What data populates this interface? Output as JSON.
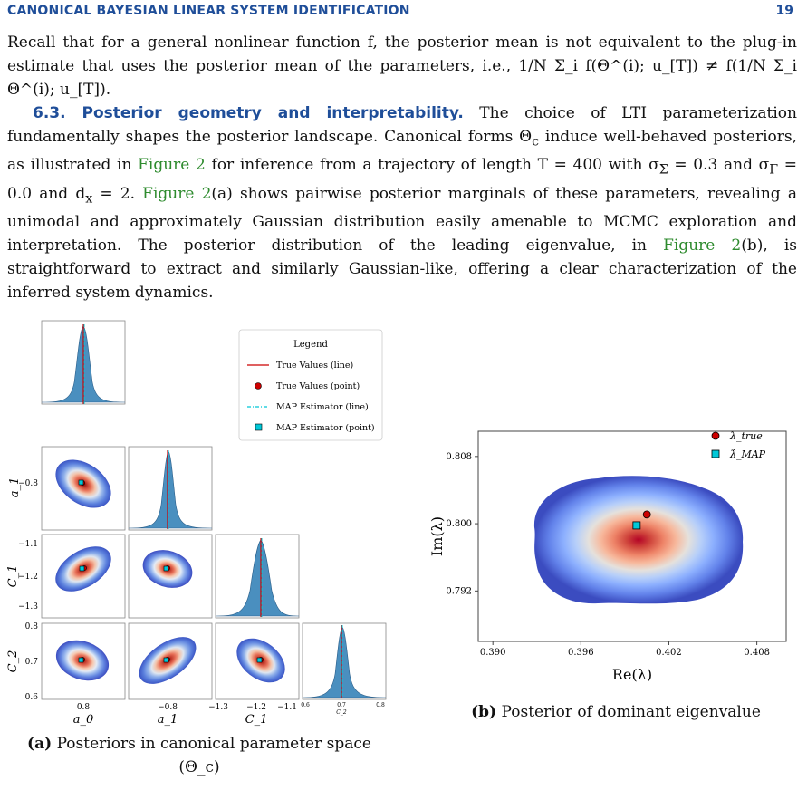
{
  "header": {
    "title": "CANONICAL BAYESIAN LINEAR SYSTEM IDENTIFICATION",
    "page_number": "19"
  },
  "paragraph1": {
    "text": "Recall that for a general nonlinear function f, the posterior mean is not equivalent to the plug-in estimate that uses the posterior mean of the parameters, i.e.,",
    "formula": "1/N Σ_i f(Θ^(i); u_[T]) ≠ f(1/N Σ_i Θ^(i); u_[T])."
  },
  "section": {
    "heading": "6.3. Posterior geometry and interpretability.",
    "s1": "The choice of LTI parameterization fundamentally shapes the posterior landscape. Canonical forms Θ",
    "s2": " induce well-behaved posteriors, as illustrated in ",
    "fig_ref": "Figure 2",
    "s3": " for inference from a trajectory of length T = 400 with σ",
    "s4": " = 0.3 and σ",
    "s5": " = 0.0 and d",
    "s6": " = 2. ",
    "s7": "(a) shows pairwise posterior marginals of these parameters, revealing a unimodal and approximately Gaussian distribution easily amenable to MCMC exploration and interpretation. The posterior distribution of the leading eigenvalue, in ",
    "s8": "(b), is straightforward to extract and similarly Gaussian-like, offering a clear characterization of the inferred system dynamics.",
    "sub_c": "c",
    "sub_sigma": "Σ",
    "sub_gamma": "Γ",
    "sub_x": "x"
  },
  "legend_a": {
    "title": "Legend",
    "items": [
      "True Values (line)",
      "True Values (point)",
      "MAP Estimator (line)",
      "MAP Estimator (point)"
    ]
  },
  "legend_b": {
    "items": [
      "λ_true",
      "λ̂_MAP"
    ]
  },
  "colors": {
    "accent": "#1f4e99",
    "link": "#2e8b2e",
    "true": "#cc0000",
    "map": "#00c8d8",
    "hist": "#4a8fbf"
  },
  "chart_data": [
    {
      "type": "scatter",
      "title": "",
      "variables": [
        "a0",
        "a1",
        "C1",
        "C2"
      ],
      "axis_labels": {
        "x": [
          "a_0",
          "a_1",
          "C_1",
          "C_2"
        ],
        "y": [
          "a_1",
          "C_1",
          "C_2"
        ]
      },
      "y_ticks": {
        "a1": [
          "−0.8"
        ],
        "C1": [
          "−1.1",
          "−1.2",
          "−1.3"
        ],
        "C2": [
          "0.8",
          "0.7",
          "0.6"
        ]
      },
      "x_ticks": {
        "a0": [
          "0.8"
        ],
        "a1": [
          "−0.8"
        ],
        "C1": [
          "−1.3",
          "−1.2",
          "−1.1"
        ],
        "C2": [
          "0.6",
          "0.7",
          "0.8"
        ]
      },
      "true_values": {
        "a0": 0.8,
        "a1": -0.8,
        "C1": -1.17,
        "C2": 0.7
      },
      "map_values": {
        "a0": 0.8,
        "a1": -0.8,
        "C1": -1.17,
        "C2": 0.7
      },
      "caption_label": "(a)",
      "caption": "Posteriors in canonical parameter space",
      "caption_sub": "(Θ_c)"
    },
    {
      "type": "heatmap",
      "xlabel": "Re(λ)",
      "ylabel": "Im(λ)",
      "xlim": [
        0.389,
        0.41
      ],
      "ylim": [
        0.786,
        0.811
      ],
      "x_ticks": [
        "0.390",
        "0.396",
        "0.402",
        "0.408"
      ],
      "y_ticks": [
        "0.808",
        "0.800",
        "0.792"
      ],
      "true_point": {
        "x": 0.4005,
        "y": 0.8011
      },
      "map_point": {
        "x": 0.3998,
        "y": 0.7998
      },
      "caption_label": "(b)",
      "caption": "Posterior of dominant eigenvalue"
    }
  ]
}
